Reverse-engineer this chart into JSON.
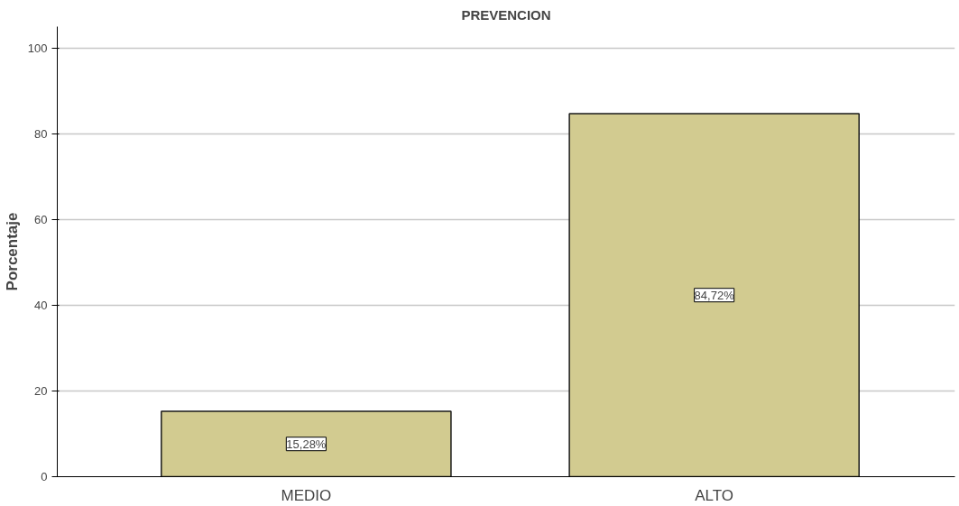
{
  "chart_data": {
    "type": "bar",
    "title": "PREVENCION",
    "ylabel": "Porcentaje",
    "categories": [
      "MEDIO",
      "ALTO"
    ],
    "values": [
      15.28,
      84.72
    ],
    "value_labels": [
      "15,28%",
      "84,72%"
    ],
    "color": "#d2cb90",
    "ylim": [
      0,
      105
    ],
    "yticks": [
      0,
      20,
      40,
      60,
      80,
      100
    ],
    "grid": "y"
  }
}
